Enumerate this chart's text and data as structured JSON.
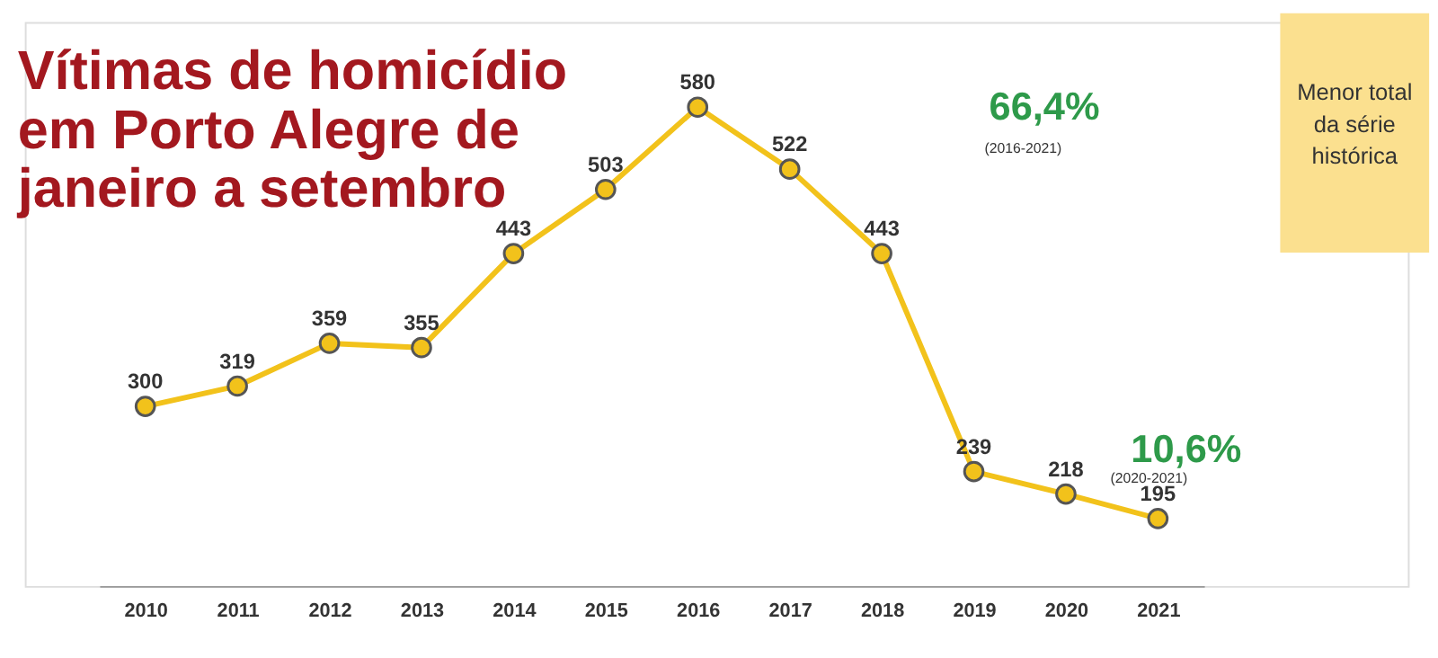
{
  "chart_data": {
    "type": "line",
    "title": "Vítimas de homicídio em Porto Alegre de janeiro a setembro",
    "categories": [
      "2010",
      "2011",
      "2012",
      "2013",
      "2014",
      "2015",
      "2016",
      "2017",
      "2018",
      "2019",
      "2020",
      "2021"
    ],
    "series": [
      {
        "color": "#f2c21b",
        "values": [
          300,
          319,
          359,
          355,
          443,
          503,
          580,
          522,
          443,
          239,
          218,
          195
        ]
      }
    ],
    "data_labels": true,
    "marker": "circle",
    "line_style": "solid",
    "grid": false,
    "tick_labels": "x",
    "annotations": [
      "66,4%",
      "(2016-2021)",
      "10,6%",
      "(2020-2021)",
      "Menor total da série histórica"
    ]
  }
}
